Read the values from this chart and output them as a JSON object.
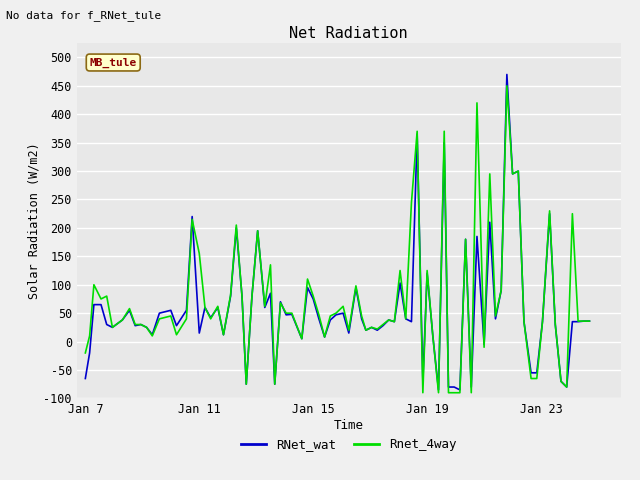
{
  "title": "Net Radiation",
  "xlabel": "Time",
  "ylabel": "Solar Radiation (W/m2)",
  "suptitle": "No data for f_RNet_tule",
  "annotation": "MB_tule",
  "ylim": [
    -100,
    525
  ],
  "xlim": [
    6.7,
    25.8
  ],
  "xticks": [
    7,
    11,
    15,
    19,
    23
  ],
  "xticklabels": [
    "Jan 7",
    "Jan 11",
    "Jan 15",
    "Jan 19",
    "Jan 23"
  ],
  "yticks": [
    -100,
    -50,
    0,
    50,
    100,
    150,
    200,
    250,
    300,
    350,
    400,
    450,
    500
  ],
  "legend_labels": [
    "RNet_wat",
    "Rnet_4way"
  ],
  "line_color_wat": "#0000cc",
  "line_color_4way": "#00dd00",
  "bg_color": "#e8e8e8",
  "fig_bg": "#f0f0f0",
  "rnet_wat_x": [
    7.0,
    7.15,
    7.3,
    7.55,
    7.75,
    7.95,
    8.3,
    8.55,
    8.75,
    8.95,
    9.15,
    9.35,
    9.6,
    10.0,
    10.2,
    10.55,
    10.75,
    11.0,
    11.2,
    11.4,
    11.65,
    11.85,
    12.1,
    12.3,
    12.5,
    12.65,
    12.85,
    13.05,
    13.3,
    13.5,
    13.65,
    13.85,
    14.05,
    14.25,
    14.6,
    14.8,
    15.0,
    15.2,
    15.4,
    15.6,
    15.8,
    16.05,
    16.25,
    16.5,
    16.7,
    16.85,
    17.05,
    17.25,
    17.45,
    17.65,
    17.85,
    18.05,
    18.25,
    18.45,
    18.65,
    18.85,
    19.0,
    19.2,
    19.4,
    19.6,
    19.75,
    19.95,
    20.15,
    20.35,
    20.55,
    20.75,
    21.0,
    21.2,
    21.4,
    21.6,
    21.8,
    22.0,
    22.2,
    22.4,
    22.65,
    22.85,
    23.05,
    23.3,
    23.5,
    23.7,
    23.9,
    24.1,
    24.3,
    24.5,
    24.7
  ],
  "rnet_wat_y": [
    -65,
    -20,
    65,
    65,
    30,
    25,
    38,
    55,
    28,
    30,
    25,
    12,
    50,
    55,
    28,
    55,
    220,
    15,
    60,
    42,
    60,
    12,
    80,
    200,
    80,
    -75,
    80,
    195,
    60,
    85,
    -75,
    70,
    47,
    48,
    5,
    95,
    75,
    40,
    8,
    38,
    47,
    50,
    15,
    95,
    40,
    20,
    25,
    20,
    28,
    38,
    35,
    103,
    40,
    35,
    365,
    -70,
    120,
    10,
    -85,
    350,
    -80,
    -80,
    -85,
    180,
    -80,
    185,
    -5,
    210,
    40,
    90,
    470,
    295,
    300,
    35,
    -55,
    -55,
    35,
    225,
    30,
    -70,
    -80,
    35,
    35,
    36,
    36
  ],
  "rnet_4way_x": [
    7.0,
    7.15,
    7.3,
    7.55,
    7.75,
    7.95,
    8.3,
    8.55,
    8.75,
    8.95,
    9.15,
    9.35,
    9.6,
    10.0,
    10.2,
    10.55,
    10.75,
    11.0,
    11.2,
    11.4,
    11.65,
    11.85,
    12.1,
    12.3,
    12.5,
    12.65,
    12.85,
    13.05,
    13.3,
    13.5,
    13.65,
    13.85,
    14.05,
    14.25,
    14.6,
    14.8,
    15.0,
    15.2,
    15.4,
    15.6,
    15.8,
    16.05,
    16.25,
    16.5,
    16.7,
    16.85,
    17.05,
    17.25,
    17.45,
    17.65,
    17.85,
    18.05,
    18.25,
    18.45,
    18.65,
    18.85,
    19.0,
    19.2,
    19.4,
    19.6,
    19.75,
    19.95,
    20.15,
    20.35,
    20.55,
    20.75,
    21.0,
    21.2,
    21.4,
    21.6,
    21.8,
    22.0,
    22.2,
    22.4,
    22.65,
    22.85,
    23.05,
    23.3,
    23.5,
    23.7,
    23.9,
    24.1,
    24.3,
    24.5,
    24.7
  ],
  "rnet_4way_y": [
    -20,
    10,
    100,
    75,
    80,
    25,
    38,
    58,
    30,
    30,
    25,
    10,
    40,
    45,
    12,
    40,
    215,
    155,
    60,
    40,
    62,
    12,
    82,
    205,
    80,
    -75,
    80,
    195,
    62,
    135,
    -75,
    68,
    50,
    50,
    5,
    110,
    80,
    47,
    8,
    45,
    50,
    62,
    20,
    98,
    45,
    20,
    25,
    22,
    30,
    38,
    35,
    125,
    40,
    245,
    370,
    -90,
    125,
    10,
    -90,
    370,
    -90,
    -90,
    -90,
    180,
    -90,
    420,
    -10,
    295,
    45,
    90,
    450,
    295,
    300,
    35,
    -65,
    -65,
    35,
    230,
    30,
    -70,
    -80,
    225,
    36,
    36,
    36
  ]
}
